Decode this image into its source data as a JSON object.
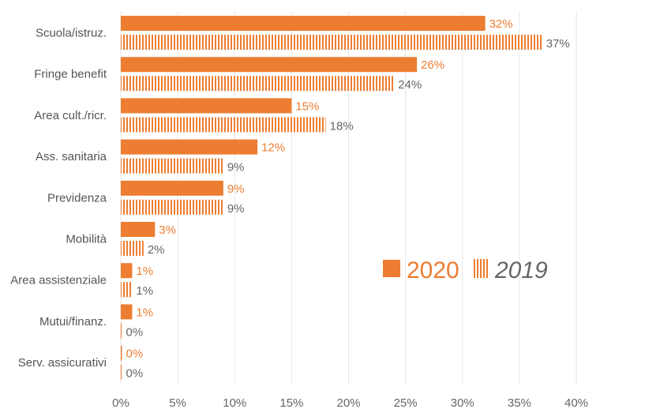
{
  "chart_data": {
    "type": "bar",
    "orientation": "horizontal",
    "categories": [
      "Scuola/istruz.",
      "Fringe benefit",
      "Area cult./ricr.",
      "Ass. sanitaria",
      "Previdenza",
      "Mobilità",
      "Area assistenziale",
      "Mutui/finanz.",
      "Serv. assicurativi"
    ],
    "series": [
      {
        "name": "2020",
        "values": [
          32,
          26,
          15,
          12,
          9,
          3,
          1,
          1,
          0
        ],
        "labels": [
          "32%",
          "26%",
          "15%",
          "12%",
          "9%",
          "3%",
          "1%",
          "1%",
          "0%"
        ],
        "color": "#ED7D31",
        "pattern": "solid"
      },
      {
        "name": "2019",
        "values": [
          37,
          24,
          18,
          9,
          9,
          2,
          1,
          0,
          0
        ],
        "labels": [
          "37%",
          "24%",
          "18%",
          "9%",
          "9%",
          "2%",
          "1%",
          "0%",
          "0%"
        ],
        "color": "#ED7D31",
        "pattern": "vertical-stripes"
      }
    ],
    "x_ticks": [
      "0%",
      "5%",
      "10%",
      "15%",
      "20%",
      "25%",
      "30%",
      "35%",
      "40%"
    ],
    "xlim": [
      0,
      40
    ],
    "grid": "vertical",
    "legend": {
      "position": "center-right",
      "entries": [
        "2020",
        "2019"
      ]
    },
    "title": "",
    "xlabel": "",
    "ylabel": ""
  }
}
